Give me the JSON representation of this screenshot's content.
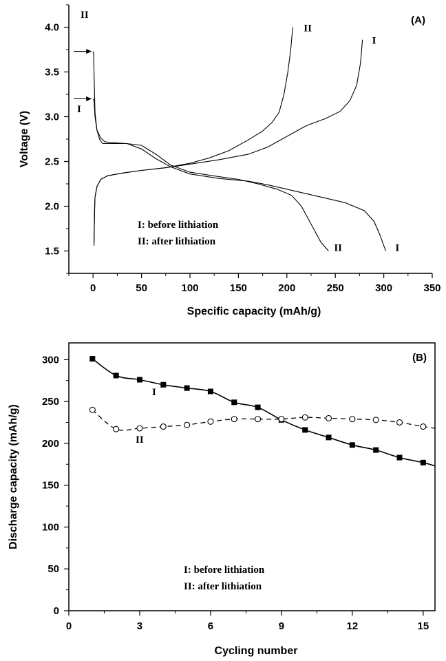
{
  "chart_data": [
    {
      "type": "line",
      "panel_label": "(A)",
      "xlabel": "Specific capacity (mAh/g)",
      "ylabel": "Voltage (V)",
      "xlim": [
        -25,
        350
      ],
      "ylim": [
        1.25,
        4.25
      ],
      "xticks": [
        0,
        50,
        100,
        150,
        200,
        250,
        300,
        350
      ],
      "yticks": [
        1.5,
        2.0,
        2.5,
        3.0,
        3.5,
        4.0
      ],
      "ytick_labels": [
        "1.5",
        "2.0",
        "2.5",
        "3.0",
        "3.5",
        "4.0"
      ],
      "grid": false,
      "legend_lines": [
        "I: before lithiation",
        "II: after lithiation"
      ],
      "arrow_labels": [
        {
          "label": "II",
          "x": 0,
          "y": 3.73
        },
        {
          "label": "I",
          "x": 0,
          "y": 3.2
        }
      ],
      "series": [
        {
          "name": "I",
          "kind": "discharge",
          "end_label": "I",
          "x": [
            0,
            1,
            2,
            4,
            7,
            10,
            20,
            35,
            50,
            65,
            80,
            100,
            130,
            160,
            180,
            200,
            220,
            240,
            260,
            280,
            290,
            296,
            302
          ],
          "y": [
            3.2,
            3.18,
            3.0,
            2.85,
            2.74,
            2.7,
            2.7,
            2.7,
            2.64,
            2.53,
            2.44,
            2.36,
            2.31,
            2.28,
            2.24,
            2.19,
            2.14,
            2.09,
            2.04,
            1.95,
            1.83,
            1.68,
            1.5
          ]
        },
        {
          "name": "I",
          "kind": "charge",
          "end_label": "I",
          "x": [
            1,
            1.5,
            2,
            4,
            8,
            15,
            30,
            50,
            75,
            100,
            130,
            160,
            180,
            200,
            220,
            240,
            255,
            265,
            272,
            276,
            278
          ],
          "y": [
            1.56,
            1.9,
            2.1,
            2.22,
            2.3,
            2.34,
            2.37,
            2.4,
            2.43,
            2.47,
            2.52,
            2.58,
            2.66,
            2.78,
            2.9,
            2.98,
            3.06,
            3.18,
            3.35,
            3.6,
            3.86
          ]
        },
        {
          "name": "II",
          "kind": "discharge",
          "end_label": "II",
          "x": [
            0,
            0.6,
            1.2,
            2,
            4,
            8,
            12,
            20,
            35,
            50,
            65,
            80,
            100,
            130,
            150,
            170,
            190,
            205,
            215,
            225,
            235,
            243
          ],
          "y": [
            3.73,
            3.7,
            3.4,
            3.05,
            2.85,
            2.76,
            2.72,
            2.71,
            2.7,
            2.68,
            2.58,
            2.46,
            2.38,
            2.33,
            2.3,
            2.25,
            2.19,
            2.12,
            2.0,
            1.8,
            1.6,
            1.5
          ]
        },
        {
          "name": "II",
          "kind": "charge",
          "end_label": "II",
          "x": [
            1,
            1.5,
            2,
            4,
            8,
            15,
            30,
            50,
            75,
            100,
            120,
            140,
            160,
            175,
            185,
            192,
            197,
            201,
            204,
            206
          ],
          "y": [
            1.6,
            1.95,
            2.1,
            2.22,
            2.3,
            2.34,
            2.37,
            2.4,
            2.43,
            2.48,
            2.54,
            2.62,
            2.74,
            2.84,
            2.94,
            3.05,
            3.25,
            3.5,
            3.75,
            4.0
          ]
        }
      ]
    },
    {
      "type": "line",
      "panel_label": "(B)",
      "xlabel": "Cycling number",
      "ylabel": "Discharge capacity (mAh/g)",
      "xlim": [
        0,
        15.5
      ],
      "ylim": [
        0,
        320
      ],
      "xticks": [
        0,
        3,
        6,
        9,
        12,
        15
      ],
      "yticks": [
        0,
        50,
        100,
        150,
        200,
        250,
        300
      ],
      "grid": false,
      "legend_lines": [
        "I: before lithiation",
        "II: after lithiation"
      ],
      "series": [
        {
          "name": "I",
          "marker": "filled-square",
          "line_style": "solid",
          "x": [
            1,
            2,
            3,
            4,
            5,
            6,
            7,
            8,
            9,
            10,
            11,
            12,
            13,
            14,
            15
          ],
          "y": [
            301,
            281,
            276,
            270,
            266,
            262,
            249,
            243,
            228,
            216,
            207,
            198,
            192,
            183,
            177
          ],
          "extend_to": [
            15.5,
            173
          ]
        },
        {
          "name": "II",
          "marker": "open-circle",
          "line_style": "dashed",
          "x": [
            1,
            2,
            3,
            4,
            5,
            6,
            7,
            8,
            9,
            10,
            11,
            12,
            13,
            14,
            15
          ],
          "y": [
            240,
            217,
            218,
            220,
            222,
            226,
            229,
            229,
            229,
            231,
            230,
            229,
            228,
            225,
            220
          ],
          "extend_to": [
            15.5,
            218
          ]
        }
      ]
    }
  ]
}
